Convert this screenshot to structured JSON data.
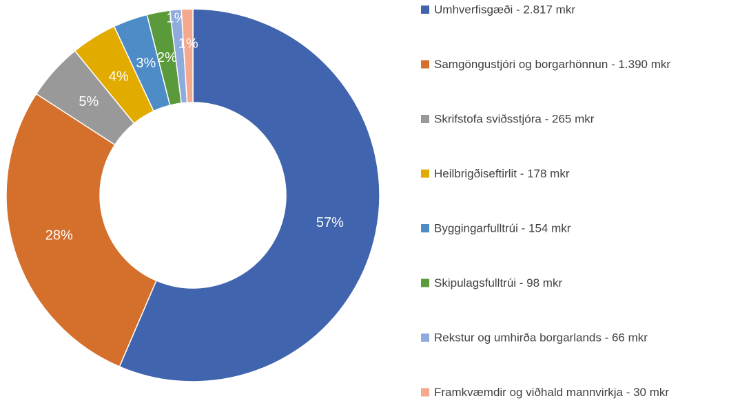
{
  "chart_data": {
    "type": "donut",
    "categories": [
      "Umhverfisgæði - 2.817 mkr",
      "Samgöngustjóri og borgarhönnun - 1.390 mkr",
      "Skrifstofa sviðsstjóra - 265 mkr",
      "Heilbrigðiseftirlit - 178 mkr",
      "Byggingarfulltrúi - 154 mkr",
      "Skipulagsfulltrúi - 98 mkr",
      "Rekstur og umhirða borgarlands - 66 mkr",
      "Framkvæmdir og viðhald mannvirkja - 30 mkr"
    ],
    "values": [
      57,
      28,
      5,
      4,
      3,
      2,
      1,
      1
    ],
    "value_labels": [
      "57%",
      "28%",
      "5%",
      "4%",
      "3%",
      "2%",
      "1%",
      "1%"
    ],
    "colors": [
      "#4064ad",
      "#d4702b",
      "#999999",
      "#e2ab00",
      "#4d8cc6",
      "#5a9a3b",
      "#8faadc",
      "#f4a98e"
    ],
    "legend": "right"
  }
}
